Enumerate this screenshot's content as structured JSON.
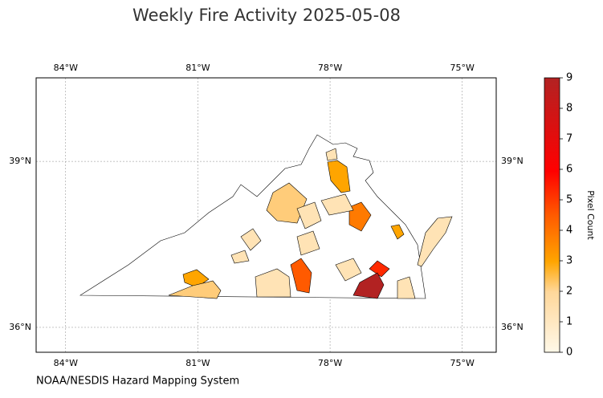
{
  "title": "Weekly Fire Activity 2025-05-08",
  "map": {
    "xlim": [
      -84.67,
      -74.23
    ],
    "ylim": [
      35.55,
      40.51
    ],
    "xticks": [
      {
        "value": -84,
        "label": "84°W"
      },
      {
        "value": -81,
        "label": "81°W"
      },
      {
        "value": -78,
        "label": "78°W"
      },
      {
        "value": -75,
        "label": "75°W"
      }
    ],
    "yticks": [
      {
        "value": 36,
        "label": "36°N"
      },
      {
        "value": 39,
        "label": "39°N"
      }
    ],
    "grid": true
  },
  "colorbar": {
    "label": "Pixel Count",
    "range": [
      0,
      9
    ],
    "ticks": [
      0,
      1,
      2,
      3,
      4,
      5,
      6,
      7,
      8,
      9
    ]
  },
  "source": "NOAA/NESDIS Hazard Mapping System"
}
